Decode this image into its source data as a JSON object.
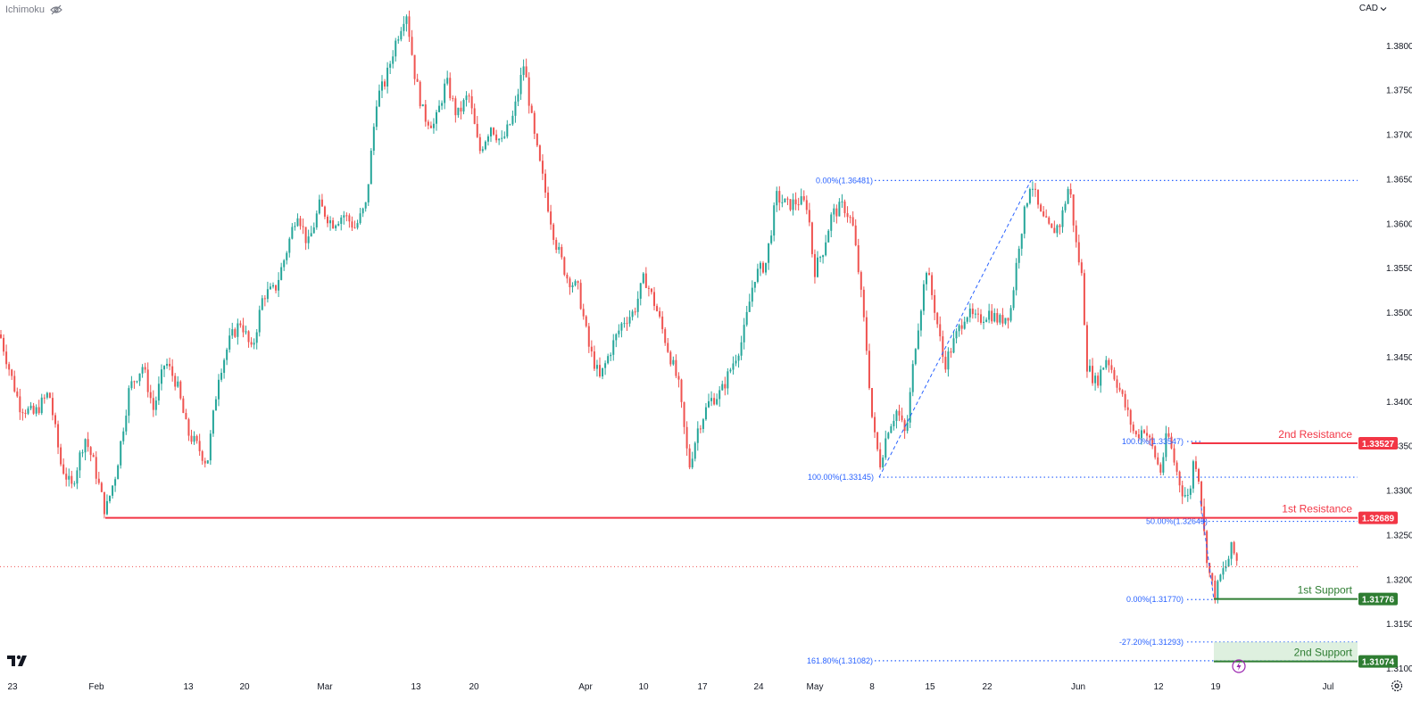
{
  "indicator": {
    "name": "Ichimoku",
    "eye_icon": "eye-off-icon"
  },
  "currency": {
    "label": "CAD",
    "chevron": "chevron-down-icon"
  },
  "colors": {
    "up": "#26a69a",
    "down": "#ef5350",
    "resistance": "#f23645",
    "support": "#2e7d32",
    "fib": "#2962ff",
    "axis_text": "#131722"
  },
  "chart_data": {
    "type": "candlestick",
    "instrument_currency": "CAD",
    "y_axis": {
      "ticks": [
        "1.38000",
        "1.37500",
        "1.37000",
        "1.36500",
        "1.36000",
        "1.35500",
        "1.35000",
        "1.34500",
        "1.34000",
        "1.33500",
        "1.33000",
        "1.32500",
        "1.32000",
        "1.31500",
        "1.31000"
      ],
      "range": [
        1.3092,
        1.3851
      ]
    },
    "x_axis": {
      "ticks": [
        "23",
        "Feb",
        "13",
        "20",
        "Mar",
        "13",
        "20",
        "Apr",
        "10",
        "17",
        "24",
        "May",
        "8",
        "15",
        "22",
        "Jun",
        "12",
        "19",
        "Jul"
      ]
    },
    "close_path": [
      [
        0,
        1.3475
      ],
      [
        12,
        1.343
      ],
      [
        22,
        1.3395
      ],
      [
        38,
        1.3385
      ],
      [
        55,
        1.341
      ],
      [
        68,
        1.333
      ],
      [
        80,
        1.3302
      ],
      [
        95,
        1.336
      ],
      [
        105,
        1.333
      ],
      [
        118,
        1.3275
      ],
      [
        130,
        1.332
      ],
      [
        145,
        1.3415
      ],
      [
        160,
        1.344
      ],
      [
        172,
        1.339
      ],
      [
        185,
        1.3445
      ],
      [
        198,
        1.342
      ],
      [
        210,
        1.3365
      ],
      [
        222,
        1.3348
      ],
      [
        232,
        1.333
      ],
      [
        245,
        1.343
      ],
      [
        258,
        1.347
      ],
      [
        270,
        1.349
      ],
      [
        282,
        1.3455
      ],
      [
        295,
        1.352
      ],
      [
        308,
        1.3525
      ],
      [
        320,
        1.3565
      ],
      [
        333,
        1.3615
      ],
      [
        345,
        1.3575
      ],
      [
        358,
        1.362
      ],
      [
        372,
        1.36
      ],
      [
        385,
        1.361
      ],
      [
        398,
        1.3595
      ],
      [
        410,
        1.362
      ],
      [
        422,
        1.374
      ],
      [
        432,
        1.376
      ],
      [
        442,
        1.38
      ],
      [
        455,
        1.384
      ],
      [
        465,
        1.3765
      ],
      [
        475,
        1.372
      ],
      [
        487,
        1.371
      ],
      [
        500,
        1.376
      ],
      [
        512,
        1.372
      ],
      [
        525,
        1.3745
      ],
      [
        537,
        1.368
      ],
      [
        550,
        1.371
      ],
      [
        562,
        1.369
      ],
      [
        575,
        1.372
      ],
      [
        587,
        1.378
      ],
      [
        598,
        1.37
      ],
      [
        610,
        1.364
      ],
      [
        622,
        1.358
      ],
      [
        635,
        1.354
      ],
      [
        648,
        1.3525
      ],
      [
        660,
        1.346
      ],
      [
        672,
        1.3425
      ],
      [
        685,
        1.346
      ],
      [
        698,
        1.349
      ],
      [
        710,
        1.35
      ],
      [
        722,
        1.354
      ],
      [
        735,
        1.3505
      ],
      [
        748,
        1.346
      ],
      [
        760,
        1.342
      ],
      [
        772,
        1.3325
      ],
      [
        782,
        1.337
      ],
      [
        795,
        1.34
      ],
      [
        808,
        1.341
      ],
      [
        820,
        1.344
      ],
      [
        832,
        1.347
      ],
      [
        845,
        1.354
      ],
      [
        858,
        1.3555
      ],
      [
        870,
        1.363
      ],
      [
        882,
        1.362
      ],
      [
        895,
        1.3625
      ],
      [
        905,
        1.362
      ],
      [
        912,
        1.3545
      ],
      [
        922,
        1.357
      ],
      [
        932,
        1.361
      ],
      [
        945,
        1.362
      ],
      [
        955,
        1.36
      ],
      [
        962,
        1.3545
      ],
      [
        970,
        1.347
      ],
      [
        978,
        1.337
      ],
      [
        986,
        1.333
      ],
      [
        995,
        1.337
      ],
      [
        1005,
        1.339
      ],
      [
        1015,
        1.336
      ],
      [
        1025,
        1.346
      ],
      [
        1038,
        1.355
      ],
      [
        1048,
        1.35
      ],
      [
        1058,
        1.344
      ],
      [
        1070,
        1.347
      ],
      [
        1082,
        1.35
      ],
      [
        1095,
        1.349
      ],
      [
        1108,
        1.35
      ],
      [
        1120,
        1.349
      ],
      [
        1132,
        1.35
      ],
      [
        1142,
        1.358
      ],
      [
        1155,
        1.365
      ],
      [
        1165,
        1.361
      ],
      [
        1178,
        1.359
      ],
      [
        1188,
        1.36
      ],
      [
        1198,
        1.3645
      ],
      [
        1205,
        1.358
      ],
      [
        1212,
        1.354
      ],
      [
        1218,
        1.344
      ],
      [
        1228,
        1.342
      ],
      [
        1240,
        1.345
      ],
      [
        1252,
        1.342
      ],
      [
        1262,
        1.339
      ],
      [
        1272,
        1.336
      ],
      [
        1282,
        1.337
      ],
      [
        1292,
        1.3345
      ],
      [
        1300,
        1.332
      ],
      [
        1308,
        1.3365
      ],
      [
        1316,
        1.333
      ],
      [
        1324,
        1.33
      ],
      [
        1332,
        1.329
      ],
      [
        1338,
        1.334
      ],
      [
        1344,
        1.331
      ],
      [
        1350,
        1.324
      ],
      [
        1356,
        1.32
      ],
      [
        1362,
        1.3182
      ],
      [
        1368,
        1.3205
      ],
      [
        1374,
        1.3215
      ],
      [
        1380,
        1.3235
      ],
      [
        1386,
        1.322
      ]
    ],
    "horizontal_levels": [
      {
        "name": "2nd Resistance",
        "value": 1.33527,
        "label": "1.33527",
        "kind": "resistance"
      },
      {
        "name": "1st Resistance",
        "value": 1.32689,
        "label": "1.32689",
        "kind": "resistance"
      },
      {
        "name": "1st Support",
        "value": 1.31776,
        "label": "1.31776",
        "kind": "support"
      },
      {
        "name": "2nd Support",
        "value": 1.31074,
        "label": "1.31074",
        "kind": "support"
      }
    ],
    "fib_labels": [
      {
        "text": "0.00%(1.36481)",
        "value": 1.36481
      },
      {
        "text": "100.00%(1.33145)",
        "value": 1.33145
      },
      {
        "text": "100.0%(1.33547)",
        "value": 1.33547
      },
      {
        "text": "50.00%(1.32649)",
        "value": 1.32649
      },
      {
        "text": "0.00%(1.31770)",
        "value": 1.3177
      },
      {
        "text": "-27.20%(1.31293)",
        "value": 1.31293
      },
      {
        "text": "161.80%(1.31082)",
        "value": 1.31082
      }
    ],
    "current_price": 1.3214
  }
}
